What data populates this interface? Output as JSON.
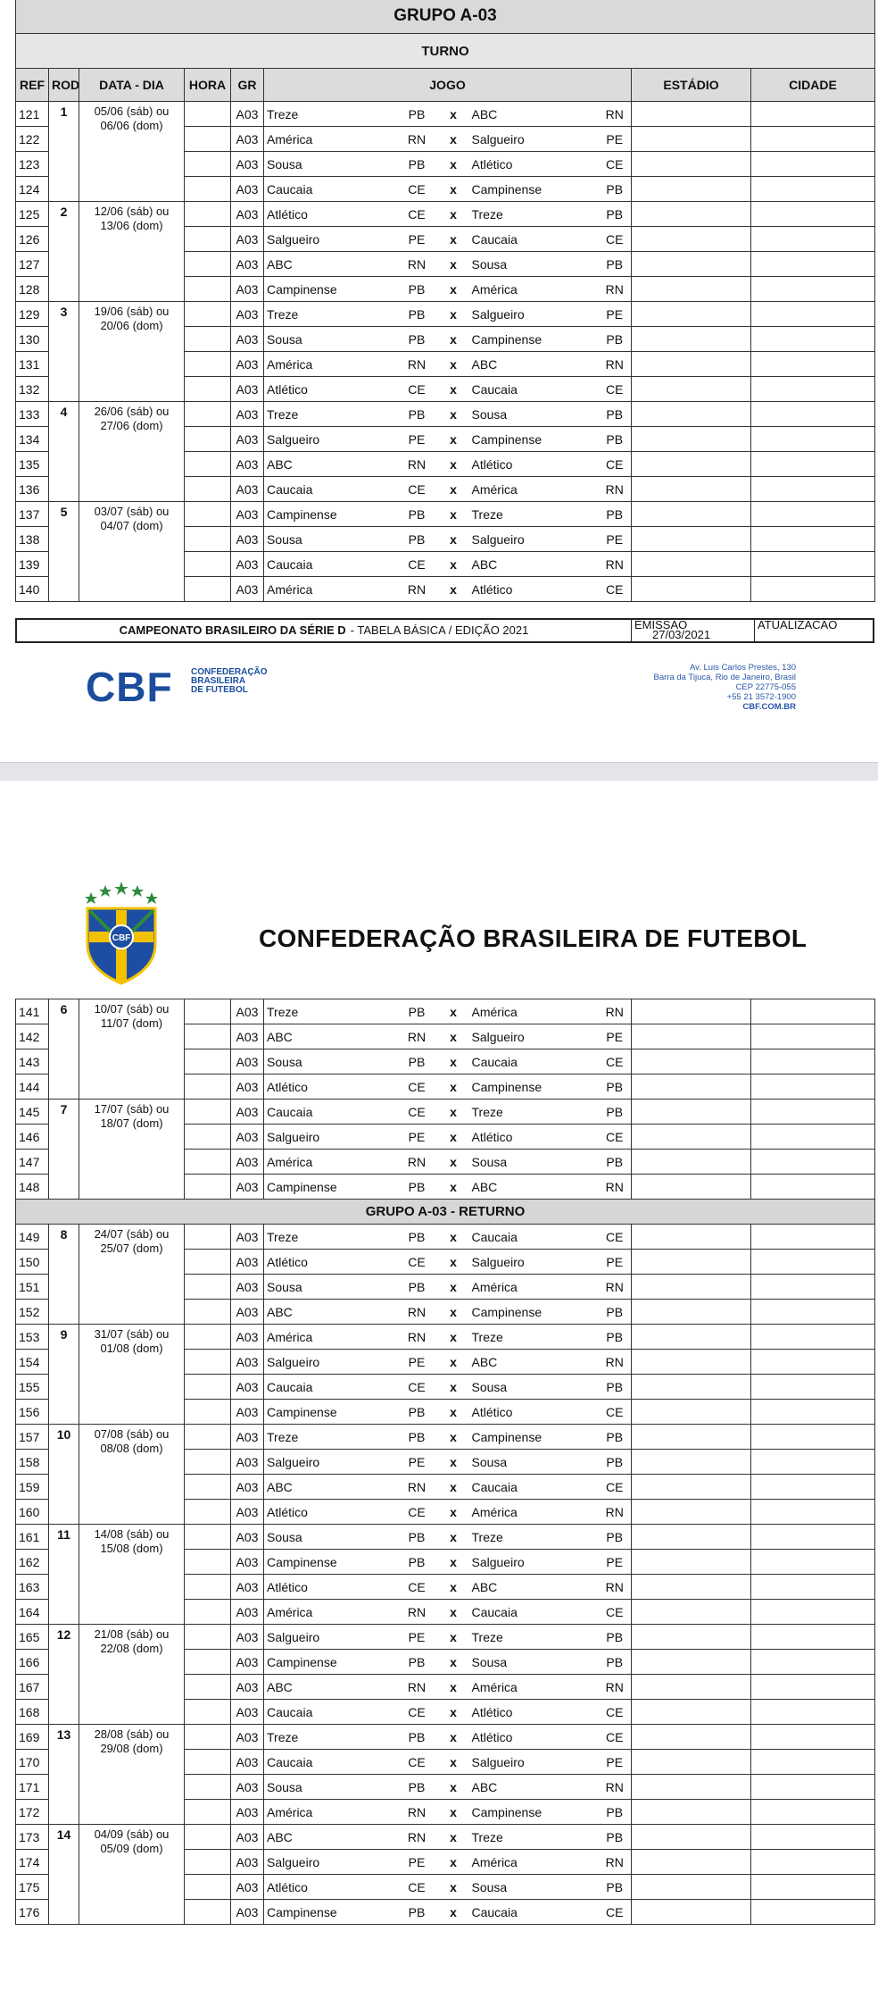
{
  "page1": {
    "title": "GRUPO A-03",
    "subtitle": "TURNO",
    "headers": [
      "REF",
      "ROD",
      "DATA - DIA",
      "HORA",
      "GR",
      "JOGO",
      "ESTÁDIO",
      "CIDADE"
    ],
    "rounds": [
      {
        "rod": "1",
        "date": [
          "05/06 (sáb) ou",
          "06/06 (dom)"
        ],
        "matches": [
          [
            "121",
            "A03",
            "Treze",
            "PB",
            "x",
            "ABC",
            "RN"
          ],
          [
            "122",
            "A03",
            "América",
            "RN",
            "x",
            "Salgueiro",
            "PE"
          ],
          [
            "123",
            "A03",
            "Sousa",
            "PB",
            "x",
            "Atlético",
            "CE"
          ],
          [
            "124",
            "A03",
            "Caucaia",
            "CE",
            "x",
            "Campinense",
            "PB"
          ]
        ]
      },
      {
        "rod": "2",
        "date": [
          "12/06 (sáb) ou",
          "13/06 (dom)"
        ],
        "matches": [
          [
            "125",
            "A03",
            "Atlético",
            "CE",
            "x",
            "Treze",
            "PB"
          ],
          [
            "126",
            "A03",
            "Salgueiro",
            "PE",
            "x",
            "Caucaia",
            "CE"
          ],
          [
            "127",
            "A03",
            "ABC",
            "RN",
            "x",
            "Sousa",
            "PB"
          ],
          [
            "128",
            "A03",
            "Campinense",
            "PB",
            "x",
            "América",
            "RN"
          ]
        ]
      },
      {
        "rod": "3",
        "date": [
          "19/06 (sáb) ou",
          "20/06 (dom)"
        ],
        "matches": [
          [
            "129",
            "A03",
            "Treze",
            "PB",
            "x",
            "Salgueiro",
            "PE"
          ],
          [
            "130",
            "A03",
            "Sousa",
            "PB",
            "x",
            "Campinense",
            "PB"
          ],
          [
            "131",
            "A03",
            "América",
            "RN",
            "x",
            "ABC",
            "RN"
          ],
          [
            "132",
            "A03",
            "Atlético",
            "CE",
            "x",
            "Caucaia",
            "CE"
          ]
        ]
      },
      {
        "rod": "4",
        "date": [
          "26/06 (sáb) ou",
          "27/06 (dom)"
        ],
        "matches": [
          [
            "133",
            "A03",
            "Treze",
            "PB",
            "x",
            "Sousa",
            "PB"
          ],
          [
            "134",
            "A03",
            "Salgueiro",
            "PE",
            "x",
            "Campinense",
            "PB"
          ],
          [
            "135",
            "A03",
            "ABC",
            "RN",
            "x",
            "Atlético",
            "CE"
          ],
          [
            "136",
            "A03",
            "Caucaia",
            "CE",
            "x",
            "América",
            "RN"
          ]
        ]
      },
      {
        "rod": "5",
        "date": [
          "03/07 (sáb) ou",
          "04/07 (dom)"
        ],
        "matches": [
          [
            "137",
            "A03",
            "Campinense",
            "PB",
            "x",
            "Treze",
            "PB"
          ],
          [
            "138",
            "A03",
            "Sousa",
            "PB",
            "x",
            "Salgueiro",
            "PE"
          ],
          [
            "139",
            "A03",
            "Caucaia",
            "CE",
            "x",
            "ABC",
            "RN"
          ],
          [
            "140",
            "A03",
            "América",
            "RN",
            "x",
            "Atlético",
            "CE"
          ]
        ]
      }
    ],
    "footer": {
      "bold": "CAMPEONATO BRASILEIRO DA SÉRIE D",
      "rest": "- TABELA BÁSICA / EDIÇÃO 2021",
      "emissao": "EMISSAO",
      "emissao_date": "27/03/2021",
      "atualizacao": "ATUALIZACAO"
    },
    "logo": {
      "mark": "CBF",
      "name": [
        "CONFEDERAÇÃO",
        "BRASILEIRA",
        "DE FUTEBOL"
      ]
    },
    "address": [
      "Av. Luis Carlos Prestes, 130",
      "Barra da Tijuca, Rio de Janeiro, Brasil",
      "CEP 22775-055",
      "+55 21 3572-1900",
      "CBF.COM.BR"
    ]
  },
  "page2": {
    "crest": "CBF",
    "header": "CONFEDERAÇÃO BRASILEIRA DE FUTEBOL",
    "rounds": [
      {
        "rod": "6",
        "date": [
          "10/07 (sáb) ou",
          "11/07 (dom)"
        ],
        "matches": [
          [
            "141",
            "A03",
            "Treze",
            "PB",
            "x",
            "América",
            "RN"
          ],
          [
            "142",
            "A03",
            "ABC",
            "RN",
            "x",
            "Salgueiro",
            "PE"
          ],
          [
            "143",
            "A03",
            "Sousa",
            "PB",
            "x",
            "Caucaia",
            "CE"
          ],
          [
            "144",
            "A03",
            "Atlético",
            "CE",
            "x",
            "Campinense",
            "PB"
          ]
        ]
      },
      {
        "rod": "7",
        "date": [
          "17/07 (sáb) ou",
          "18/07 (dom)"
        ],
        "matches": [
          [
            "145",
            "A03",
            "Caucaia",
            "CE",
            "x",
            "Treze",
            "PB"
          ],
          [
            "146",
            "A03",
            "Salgueiro",
            "PE",
            "x",
            "Atlético",
            "CE"
          ],
          [
            "147",
            "A03",
            "América",
            "RN",
            "x",
            "Sousa",
            "PB"
          ],
          [
            "148",
            "A03",
            "Campinense",
            "PB",
            "x",
            "ABC",
            "RN"
          ]
        ]
      }
    ],
    "returno_title": "GRUPO A-03 - RETURNO",
    "returno_rounds": [
      {
        "rod": "8",
        "date": [
          "24/07 (sáb) ou",
          "25/07 (dom)"
        ],
        "matches": [
          [
            "149",
            "A03",
            "Treze",
            "PB",
            "x",
            "Caucaia",
            "CE"
          ],
          [
            "150",
            "A03",
            "Atlético",
            "CE",
            "x",
            "Salgueiro",
            "PE"
          ],
          [
            "151",
            "A03",
            "Sousa",
            "PB",
            "x",
            "América",
            "RN"
          ],
          [
            "152",
            "A03",
            "ABC",
            "RN",
            "x",
            "Campinense",
            "PB"
          ]
        ]
      },
      {
        "rod": "9",
        "date": [
          "31/07 (sáb) ou",
          "01/08 (dom)"
        ],
        "matches": [
          [
            "153",
            "A03",
            "América",
            "RN",
            "x",
            "Treze",
            "PB"
          ],
          [
            "154",
            "A03",
            "Salgueiro",
            "PE",
            "x",
            "ABC",
            "RN"
          ],
          [
            "155",
            "A03",
            "Caucaia",
            "CE",
            "x",
            "Sousa",
            "PB"
          ],
          [
            "156",
            "A03",
            "Campinense",
            "PB",
            "x",
            "Atlético",
            "CE"
          ]
        ]
      },
      {
        "rod": "10",
        "date": [
          "07/08 (sáb) ou",
          "08/08 (dom)"
        ],
        "matches": [
          [
            "157",
            "A03",
            "Treze",
            "PB",
            "x",
            "Campinense",
            "PB"
          ],
          [
            "158",
            "A03",
            "Salgueiro",
            "PE",
            "x",
            "Sousa",
            "PB"
          ],
          [
            "159",
            "A03",
            "ABC",
            "RN",
            "x",
            "Caucaia",
            "CE"
          ],
          [
            "160",
            "A03",
            "Atlético",
            "CE",
            "x",
            "América",
            "RN"
          ]
        ]
      },
      {
        "rod": "11",
        "date": [
          "14/08 (sáb) ou",
          "15/08 (dom)"
        ],
        "matches": [
          [
            "161",
            "A03",
            "Sousa",
            "PB",
            "x",
            "Treze",
            "PB"
          ],
          [
            "162",
            "A03",
            "Campinense",
            "PB",
            "x",
            "Salgueiro",
            "PE"
          ],
          [
            "163",
            "A03",
            "Atlético",
            "CE",
            "x",
            "ABC",
            "RN"
          ],
          [
            "164",
            "A03",
            "América",
            "RN",
            "x",
            "Caucaia",
            "CE"
          ]
        ]
      },
      {
        "rod": "12",
        "date": [
          "21/08 (sáb) ou",
          "22/08 (dom)"
        ],
        "matches": [
          [
            "165",
            "A03",
            "Salgueiro",
            "PE",
            "x",
            "Treze",
            "PB"
          ],
          [
            "166",
            "A03",
            "Campinense",
            "PB",
            "x",
            "Sousa",
            "PB"
          ],
          [
            "167",
            "A03",
            "ABC",
            "RN",
            "x",
            "América",
            "RN"
          ],
          [
            "168",
            "A03",
            "Caucaia",
            "CE",
            "x",
            "Atlético",
            "CE"
          ]
        ]
      },
      {
        "rod": "13",
        "date": [
          "28/08 (sáb) ou",
          "29/08 (dom)"
        ],
        "matches": [
          [
            "169",
            "A03",
            "Treze",
            "PB",
            "x",
            "Atlético",
            "CE"
          ],
          [
            "170",
            "A03",
            "Caucaia",
            "CE",
            "x",
            "Salgueiro",
            "PE"
          ],
          [
            "171",
            "A03",
            "Sousa",
            "PB",
            "x",
            "ABC",
            "RN"
          ],
          [
            "172",
            "A03",
            "América",
            "RN",
            "x",
            "Campinense",
            "PB"
          ]
        ]
      },
      {
        "rod": "14",
        "date": [
          "04/09 (sáb) ou",
          "05/09 (dom)"
        ],
        "matches": [
          [
            "173",
            "A03",
            "ABC",
            "RN",
            "x",
            "Treze",
            "PB"
          ],
          [
            "174",
            "A03",
            "Salgueiro",
            "PE",
            "x",
            "América",
            "RN"
          ],
          [
            "175",
            "A03",
            "Atlético",
            "CE",
            "x",
            "Sousa",
            "PB"
          ],
          [
            "176",
            "A03",
            "Campinense",
            "PB",
            "x",
            "Caucaia",
            "CE"
          ]
        ]
      }
    ]
  }
}
